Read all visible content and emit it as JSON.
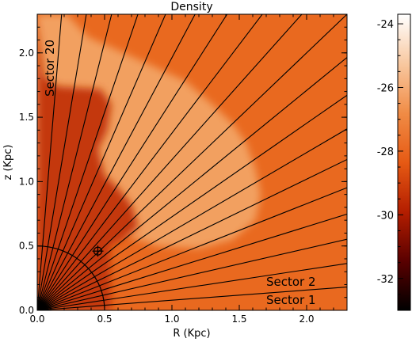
{
  "chart_data": {
    "type": "heatmap",
    "title": "Density",
    "xlabel": "R (Kpc)",
    "ylabel": "z (Kpc)",
    "xlim": [
      0,
      2.3
    ],
    "ylim": [
      0,
      2.3
    ],
    "xticks": [
      0.0,
      0.5,
      1.0,
      1.5,
      2.0
    ],
    "yticks": [
      0.0,
      0.5,
      1.0,
      1.5,
      2.0
    ],
    "xtick_labels": [
      "0.0",
      "0.5",
      "1.0",
      "1.5",
      "2.0"
    ],
    "ytick_labels": [
      "0.0",
      "0.5",
      "1.0",
      "1.5",
      "2.0"
    ],
    "colorbar": {
      "range": [
        -33,
        -23.7
      ],
      "ticks": [
        -32,
        -30,
        -28,
        -26,
        -24
      ],
      "tick_labels": [
        "-32",
        "-30",
        "-28",
        "-26",
        "-24"
      ],
      "colormap": [
        "#000000",
        "#5a0000",
        "#b41e00",
        "#e65a14",
        "#f08c46",
        "#f8c8a0",
        "#ffffff"
      ]
    },
    "sectors": {
      "count": 20,
      "angle_start_deg": 4.5,
      "angle_end_deg": 90,
      "labels": [
        {
          "text": "Sector 1",
          "sector": 1
        },
        {
          "text": "Sector 2",
          "sector": 2
        },
        {
          "text": "Sector 20",
          "sector": 20
        }
      ]
    },
    "inner_circle_radius": 0.5,
    "marker": {
      "shape": "circle-plus",
      "R": 0.45,
      "z": 0.46
    },
    "regions": {
      "background_color": "#e9691f",
      "shell_color": "#f2a060",
      "inner_color": "#c4390a"
    }
  }
}
